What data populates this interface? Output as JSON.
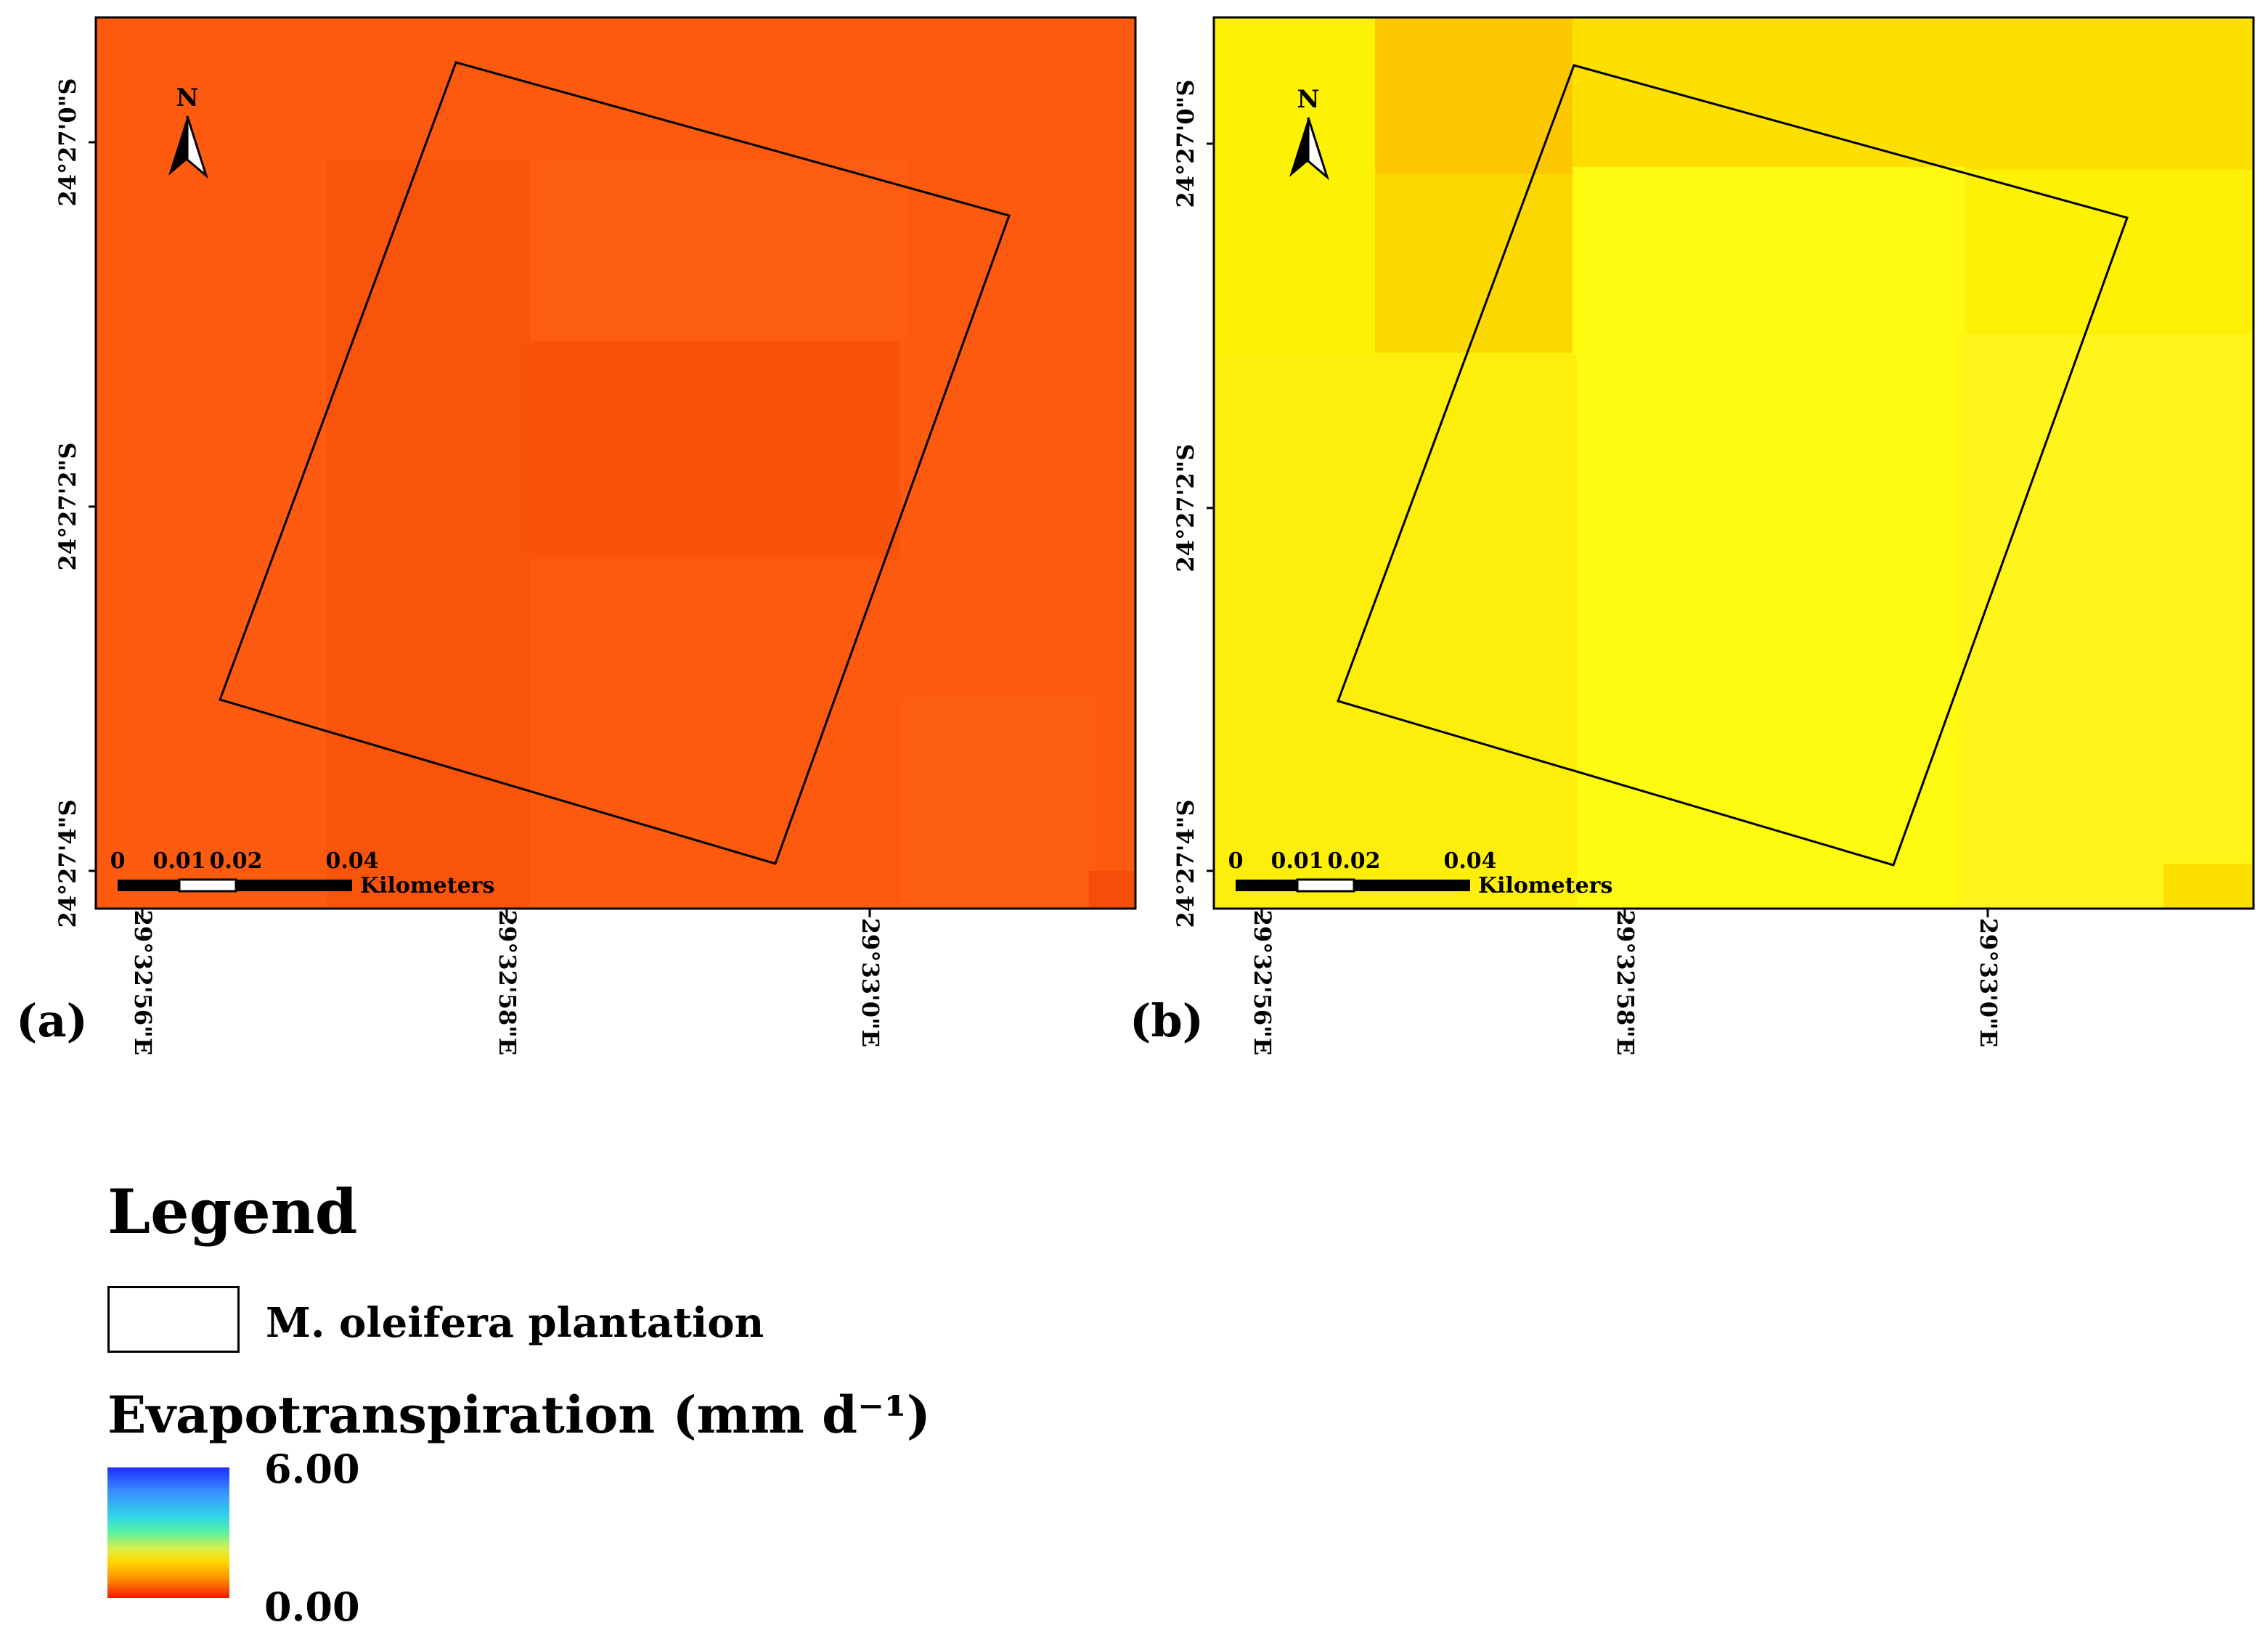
{
  "panels": [
    {
      "label": "(a)",
      "lat_ticks": [
        "24°27'0\"S",
        "24°27'2\"S",
        "24°27'4\"S"
      ],
      "lon_ticks": [
        "29°32'56\"E",
        "29°32'58\"E",
        "29°33'0\"E"
      ],
      "north_label": "N",
      "scale_labels": [
        "0",
        "0.01",
        "0.02",
        "0.04"
      ],
      "scale_unit": "Kilometers",
      "colors": {
        "base": "#fb5a0f",
        "light": "#fd5d12",
        "dark": "#f9520a"
      }
    },
    {
      "label": "(b)",
      "lat_ticks": [
        "24°27'0\"S",
        "24°27'2\"S",
        "24°27'4\"S"
      ],
      "lon_ticks": [
        "29°32'56\"E",
        "29°32'58\"E",
        "29°33'0\"E"
      ],
      "north_label": "N",
      "scale_labels": [
        "0",
        "0.01",
        "0.02",
        "0.04"
      ],
      "scale_unit": "Kilometers",
      "colors": {
        "base": "#fdf204",
        "light": "#fefb10",
        "dark": "#fde000",
        "deep": "#fdc800"
      }
    }
  ],
  "legend": {
    "title": "Legend",
    "plantation_label": "M. oleifera plantation",
    "et_title": "Evapotranspiration (mm d⁻¹)",
    "max_value": "6.00",
    "min_value": "0.00"
  }
}
